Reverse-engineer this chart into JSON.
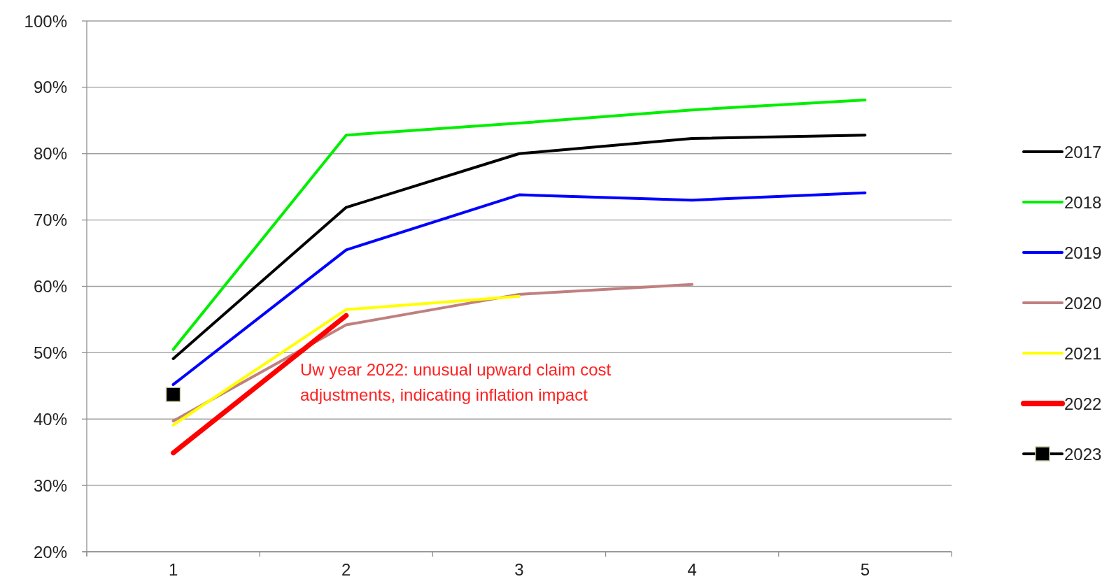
{
  "chart_data": {
    "type": "line",
    "categories": [
      "1",
      "2",
      "3",
      "4",
      "5"
    ],
    "series": [
      {
        "name": "2017",
        "color": "#000000",
        "values": [
          49.1,
          71.9,
          80.0,
          82.3,
          82.8
        ]
      },
      {
        "name": "2018",
        "color": "#00ee00",
        "values": [
          50.5,
          82.8,
          84.6,
          86.6,
          88.1
        ]
      },
      {
        "name": "2019",
        "color": "#0000ff",
        "values": [
          45.2,
          65.5,
          73.8,
          73.0,
          74.1
        ]
      },
      {
        "name": "2020",
        "color": "#c08080",
        "values": [
          39.7,
          54.2,
          58.8,
          60.3,
          null
        ]
      },
      {
        "name": "2021",
        "color": "#ffff00",
        "values": [
          39.1,
          56.5,
          58.5,
          null,
          null
        ]
      },
      {
        "name": "2022",
        "color": "#ff0000",
        "values": [
          34.9,
          55.6,
          null,
          null,
          null
        ]
      },
      {
        "name": "2023",
        "color": "#000000",
        "marker": "square",
        "values": [
          43.7,
          null,
          null,
          null,
          null
        ]
      }
    ],
    "ylim": [
      20,
      100
    ],
    "yticks": [
      {
        "value": 20,
        "label": "20%"
      },
      {
        "value": 30,
        "label": "30%"
      },
      {
        "value": 40,
        "label": "40%"
      },
      {
        "value": 50,
        "label": "50%"
      },
      {
        "value": 60,
        "label": "60%"
      },
      {
        "value": 70,
        "label": "70%"
      },
      {
        "value": 80,
        "label": "80%"
      },
      {
        "value": 90,
        "label": "90%"
      },
      {
        "value": 100,
        "label": "100%"
      }
    ],
    "grid": "y",
    "legend": "right",
    "marker": "none",
    "line_style": "solid",
    "annotations": [
      "Uw year 2022: unusual upward claim cost adjustments, indicating inflation impact"
    ]
  }
}
